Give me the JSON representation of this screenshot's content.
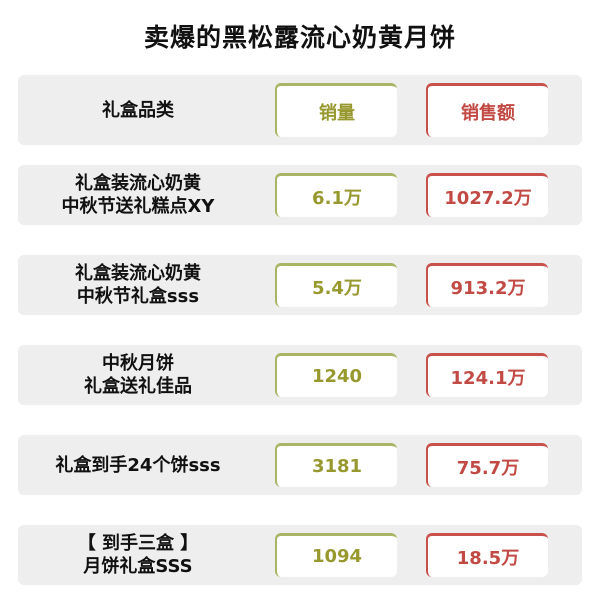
{
  "title": "卖爆的黑松露流心奶黄月饼",
  "colors": {
    "sales": "#97982e",
    "revenue": "#c24a44"
  },
  "header": {
    "category": "礼盒品类",
    "sales": "销量",
    "revenue": "销售额"
  },
  "rows": [
    {
      "name1": "礼盒装流心奶黄",
      "name2": "中秋节送礼糕点XY",
      "sales": "6.1万",
      "revenue": "1027.2万"
    },
    {
      "name1": "礼盒装流心奶黄",
      "name2": "中秋节礼盒sss",
      "sales": "5.4万",
      "revenue": "913.2万"
    },
    {
      "name1": "中秋月饼",
      "name2": "礼盒送礼佳品",
      "sales": "1240",
      "revenue": "124.1万"
    },
    {
      "name1": "礼盒到手24个饼sss",
      "name2": "",
      "sales": "3181",
      "revenue": "75.7万"
    },
    {
      "name1": "【 到手三盒 】",
      "name2": "月饼礼盒SSS",
      "sales": "1094",
      "revenue": "18.5万"
    }
  ]
}
